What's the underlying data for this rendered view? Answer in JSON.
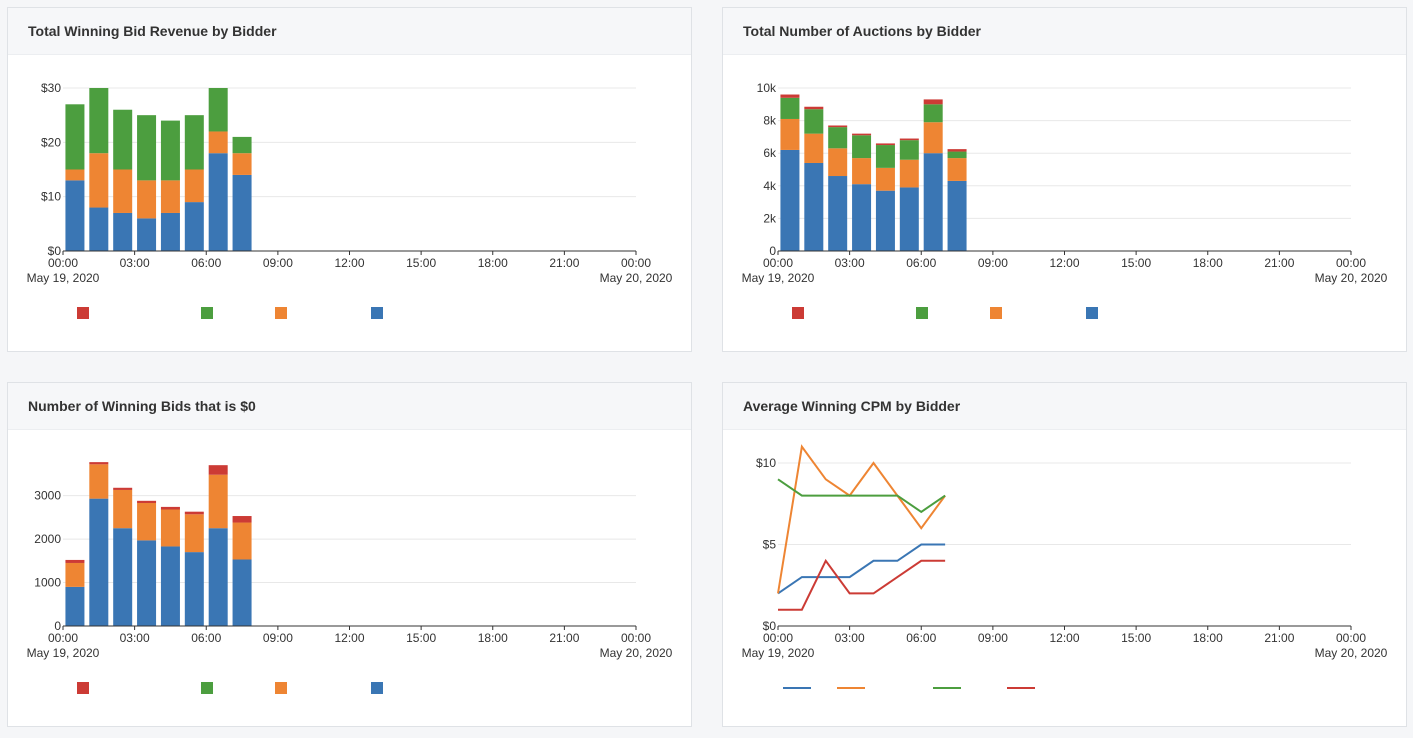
{
  "colors": {
    "blue": "#3a76b4",
    "orange": "#ee8533",
    "green": "#4c9e3f",
    "red": "#cc3b35"
  },
  "x_axis": {
    "ticks": [
      "00:00",
      "03:00",
      "06:00",
      "09:00",
      "12:00",
      "15:00",
      "18:00",
      "21:00",
      "00:00"
    ],
    "start_date": "May 19, 2020",
    "end_date": "May 20, 2020"
  },
  "chart_data": [
    {
      "type": "bar",
      "title": "Total Winning Bid Revenue by Bidder",
      "stacked": true,
      "x": [
        "00:00",
        "01:00",
        "02:00",
        "03:00",
        "04:00",
        "05:00",
        "06:00",
        "07:00"
      ],
      "ylim": [
        0,
        30
      ],
      "yticks": [
        0,
        10,
        20,
        30
      ],
      "ytick_labels": [
        "$0",
        "$10",
        "$20",
        "$30"
      ],
      "series": [
        {
          "color": "#3a76b4",
          "values": [
            13,
            8,
            7,
            6,
            7,
            9,
            18,
            14
          ]
        },
        {
          "color": "#ee8533",
          "values": [
            2,
            10,
            8,
            7,
            6,
            6,
            4,
            4
          ]
        },
        {
          "color": "#4c9e3f",
          "values": [
            12,
            12,
            11,
            12,
            11,
            10,
            8,
            3
          ]
        },
        {
          "color": "#cc3b35",
          "values": [
            0,
            0,
            0,
            0,
            0,
            0,
            0,
            0
          ]
        }
      ]
    },
    {
      "type": "bar",
      "title": "Total Number of Auctions by Bidder",
      "stacked": true,
      "x": [
        "00:00",
        "01:00",
        "02:00",
        "03:00",
        "04:00",
        "05:00",
        "06:00",
        "07:00"
      ],
      "ylim": [
        0,
        10000
      ],
      "yticks": [
        0,
        2000,
        4000,
        6000,
        8000,
        10000
      ],
      "ytick_labels": [
        "0",
        "2k",
        "4k",
        "6k",
        "8k",
        "10k"
      ],
      "series": [
        {
          "color": "#3a76b4",
          "values": [
            6200,
            5400,
            4600,
            4100,
            3700,
            3900,
            6000,
            4300
          ]
        },
        {
          "color": "#ee8533",
          "values": [
            1900,
            1800,
            1700,
            1600,
            1400,
            1700,
            1900,
            1400
          ]
        },
        {
          "color": "#4c9e3f",
          "values": [
            1300,
            1500,
            1300,
            1400,
            1400,
            1200,
            1100,
            400
          ]
        },
        {
          "color": "#cc3b35",
          "values": [
            200,
            150,
            100,
            100,
            100,
            100,
            300,
            150
          ]
        }
      ]
    },
    {
      "type": "bar",
      "title": "Number of Winning Bids that is $0",
      "stacked": true,
      "x": [
        "00:00",
        "01:00",
        "02:00",
        "03:00",
        "04:00",
        "05:00",
        "06:00",
        "07:00"
      ],
      "ylim": [
        0,
        3750
      ],
      "yticks": [
        0,
        1000,
        2000,
        3000
      ],
      "ytick_labels": [
        "0",
        "1000",
        "2000",
        "3000"
      ],
      "series": [
        {
          "color": "#3a76b4",
          "values": [
            900,
            2930,
            2250,
            1970,
            1830,
            1700,
            2250,
            1530
          ]
        },
        {
          "color": "#ee8533",
          "values": [
            550,
            790,
            880,
            860,
            850,
            870,
            1230,
            850
          ]
        },
        {
          "color": "#4c9e3f",
          "values": [
            0,
            0,
            0,
            0,
            0,
            0,
            0,
            0
          ]
        },
        {
          "color": "#cc3b35",
          "values": [
            70,
            50,
            50,
            50,
            60,
            60,
            220,
            150
          ]
        }
      ]
    },
    {
      "type": "line",
      "title": "Average Winning CPM by Bidder",
      "x": [
        "00:00",
        "01:00",
        "02:00",
        "03:00",
        "04:00",
        "05:00",
        "06:00",
        "07:00"
      ],
      "ylim": [
        0,
        10
      ],
      "yticks": [
        0,
        5,
        10
      ],
      "ytick_labels": [
        "$0",
        "$5",
        "$10"
      ],
      "series": [
        {
          "color": "#3a76b4",
          "values": [
            2,
            3,
            3,
            3,
            4,
            4,
            5,
            5
          ]
        },
        {
          "color": "#ee8533",
          "values": [
            2,
            11,
            9,
            8,
            10,
            8,
            6,
            8
          ]
        },
        {
          "color": "#4c9e3f",
          "values": [
            9,
            8,
            8,
            8,
            8,
            8,
            7,
            8
          ]
        },
        {
          "color": "#cc3b35",
          "values": [
            1,
            1,
            4,
            2,
            2,
            3,
            4,
            4
          ]
        }
      ]
    }
  ]
}
